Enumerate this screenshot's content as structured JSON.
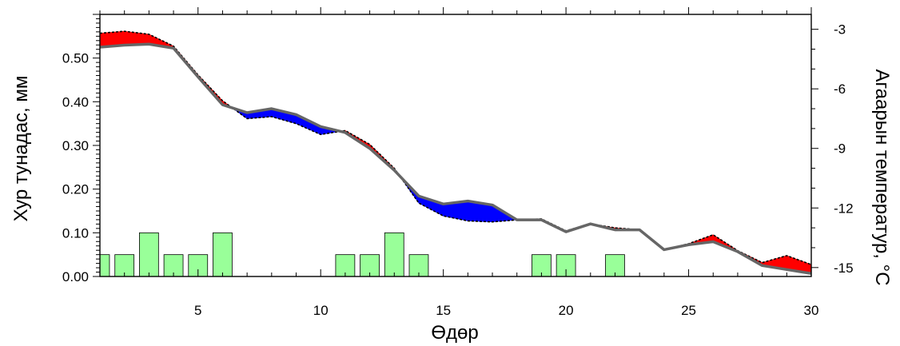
{
  "chart_data": {
    "type": "bar",
    "xlabel": "Өдөр",
    "ylabel": "Хур тунадас, мм",
    "y2label": "Агаарын температур, °C",
    "xlim": [
      1,
      30
    ],
    "ylim": [
      0,
      0.6
    ],
    "y2lim": [
      -15.45,
      -2.25
    ],
    "x_ticks": [
      "5",
      "10",
      "15",
      "20",
      "25",
      "30"
    ],
    "y_ticks": [
      "0.00",
      "0.10",
      "0.20",
      "0.30",
      "0.40",
      "0.50"
    ],
    "y2_ticks": [
      "-3",
      "-6",
      "-9",
      "-12",
      "-15"
    ],
    "series": [
      {
        "kind": "bar",
        "axis": "left",
        "color": "#99ff99",
        "days": [
          1,
          2,
          3,
          4,
          5,
          6,
          11,
          12,
          13,
          14,
          19,
          20,
          22
        ],
        "values": [
          0.05,
          0.05,
          0.1,
          0.05,
          0.05,
          0.1,
          0.05,
          0.05,
          0.1,
          0.05,
          0.05,
          0.05,
          0.05
        ]
      },
      {
        "kind": "line",
        "axis": "right",
        "style": "solid",
        "color": "#666666",
        "days": [
          1,
          2,
          3,
          4,
          5,
          6,
          7,
          8,
          9,
          10,
          11,
          12,
          13,
          14,
          15,
          16,
          17,
          18,
          19,
          20,
          21,
          22,
          23,
          24,
          25,
          26,
          27,
          28,
          29,
          30
        ],
        "values": [
          -3.9,
          -3.8,
          -3.75,
          -3.95,
          -5.4,
          -6.8,
          -7.2,
          -7.0,
          -7.3,
          -7.9,
          -8.2,
          -9.0,
          -10.1,
          -11.4,
          -11.8,
          -11.65,
          -11.85,
          -12.6,
          -12.6,
          -13.2,
          -12.8,
          -13.1,
          -13.1,
          -14.1,
          -13.85,
          -13.7,
          -14.2,
          -14.9,
          -15.1,
          -15.3
        ]
      },
      {
        "kind": "line",
        "axis": "right",
        "style": "dashed",
        "color": "#000000",
        "days": [
          1,
          2,
          3,
          4,
          5,
          6,
          7,
          8,
          9,
          10,
          11,
          12,
          13,
          14,
          15,
          16,
          17,
          18,
          19,
          20,
          21,
          22,
          23,
          24,
          25,
          26,
          27,
          28,
          29,
          30
        ],
        "values": [
          -3.2,
          -3.1,
          -3.25,
          -3.85,
          -5.3,
          -6.6,
          -7.5,
          -7.4,
          -7.75,
          -8.3,
          -8.1,
          -8.8,
          -10.0,
          -11.75,
          -12.4,
          -12.65,
          -12.7,
          -12.6,
          -12.55,
          -13.15,
          -12.8,
          -13.0,
          -13.1,
          -14.1,
          -13.8,
          -13.35,
          -14.15,
          -14.75,
          -14.4,
          -14.85
        ]
      }
    ],
    "fill_colors": {
      "warmer": "#ff0000",
      "colder": "#0000ff"
    }
  }
}
